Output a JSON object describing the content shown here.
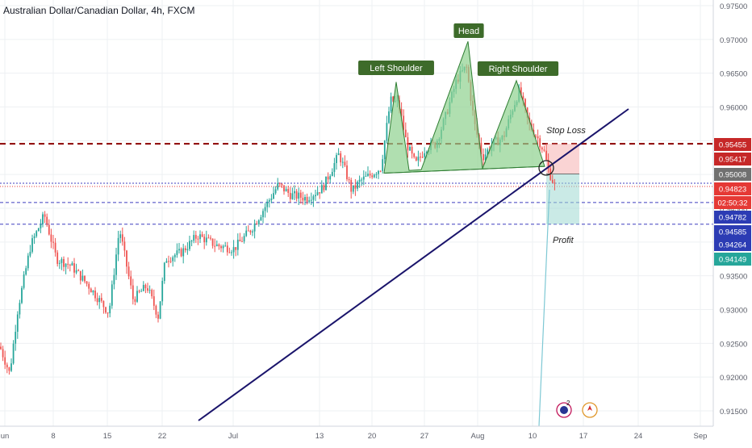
{
  "chart_data": {
    "type": "candlestick",
    "title": "Australian Dollar/Canadian Dollar, 4h, FXCM",
    "colors": {
      "up": "#26a69a",
      "down": "#ef5350",
      "pattern_fill": "#8fd18f",
      "pattern_stroke": "#2e7d32",
      "trendline": "#1a146b",
      "stop_line": "#8b0000",
      "blue_line": "#3f3fbf",
      "label_bg": "#3d6b2a"
    },
    "x_ticks": [
      "un",
      "8",
      "15",
      "22",
      "Jul",
      "13",
      "20",
      "27",
      "Aug",
      "10",
      "17",
      "24",
      "Sep"
    ],
    "y_ticks": [
      "0.97500",
      "0.97000",
      "0.96500",
      "0.96000",
      "0.95500",
      "0.95000",
      "0.94500",
      "0.94000",
      "0.93500",
      "0.93000",
      "0.92500",
      "0.92000",
      "0.91500"
    ],
    "ylim": [
      0.912,
      0.977
    ],
    "price_badges": [
      {
        "label": "0.95455",
        "color": "#c62828"
      },
      {
        "label": "0.95417",
        "color": "#c62828"
      },
      {
        "label": "0.95008",
        "color": "#707070"
      },
      {
        "label": "0.94823",
        "color": "#e53935"
      },
      {
        "label": "02:50:32",
        "color": "#e53935"
      },
      {
        "label": "0.94782",
        "color": "#2c3cb4"
      },
      {
        "label": "0.94585",
        "color": "#2c3cb4"
      },
      {
        "label": "0.94264",
        "color": "#2c3cb4"
      },
      {
        "label": "0.94149",
        "color": "#26a69a"
      }
    ],
    "annotations": {
      "left_shoulder": "Left Shoulder",
      "head": "Head",
      "right_shoulder": "Right Shoulder",
      "stop_loss": "Stop Loss",
      "profit": "Profit"
    },
    "event_count": "2",
    "key_levels": {
      "stop_loss": 0.95455,
      "entry": 0.95008,
      "last_price": 0.94823,
      "blue_1": 0.94782,
      "blue_2": 0.94585,
      "blue_3": 0.94264,
      "target_low": 0.94149
    }
  }
}
